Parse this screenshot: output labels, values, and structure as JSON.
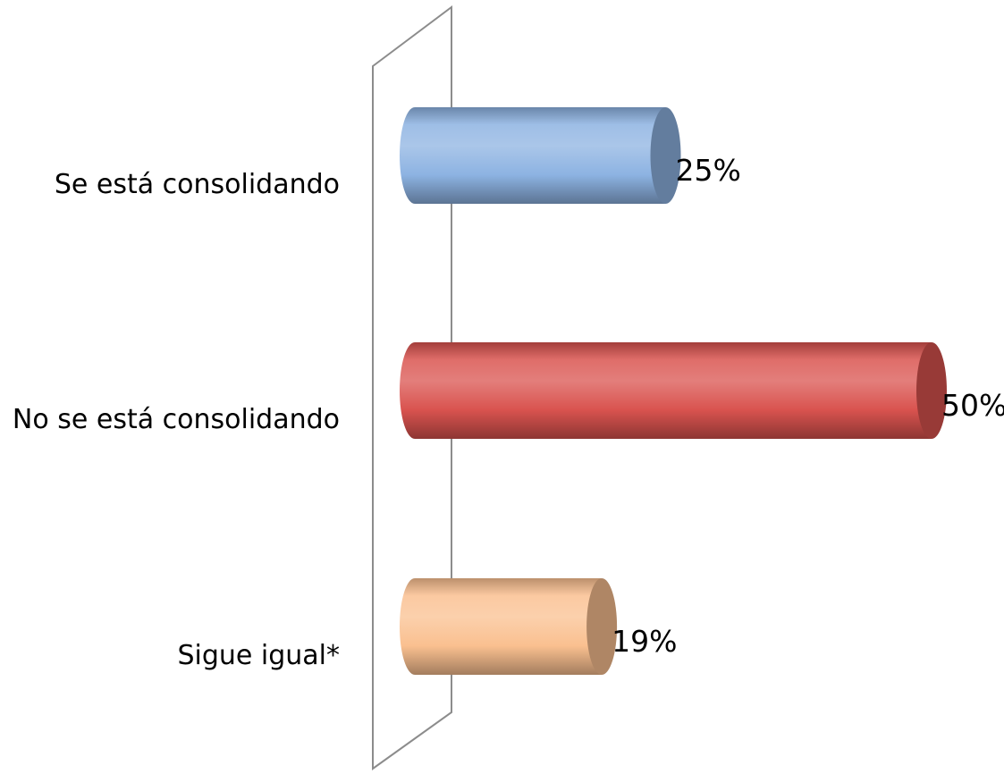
{
  "chart_data": {
    "type": "bar",
    "orientation": "horizontal",
    "style": "3d-cylinder",
    "categories": [
      "Se está consolidando",
      "No se está consolidando",
      "Sigue igual*"
    ],
    "values": [
      25,
      50,
      19
    ],
    "value_labels": [
      "25%",
      "50%",
      "19%"
    ],
    "unit": "%",
    "colors": [
      "#8DB3E2",
      "#D9534F",
      "#FAC090"
    ],
    "xlim": [
      0,
      50
    ],
    "title": "",
    "xlabel": "",
    "ylabel": "",
    "grid": false,
    "legend": "none"
  }
}
